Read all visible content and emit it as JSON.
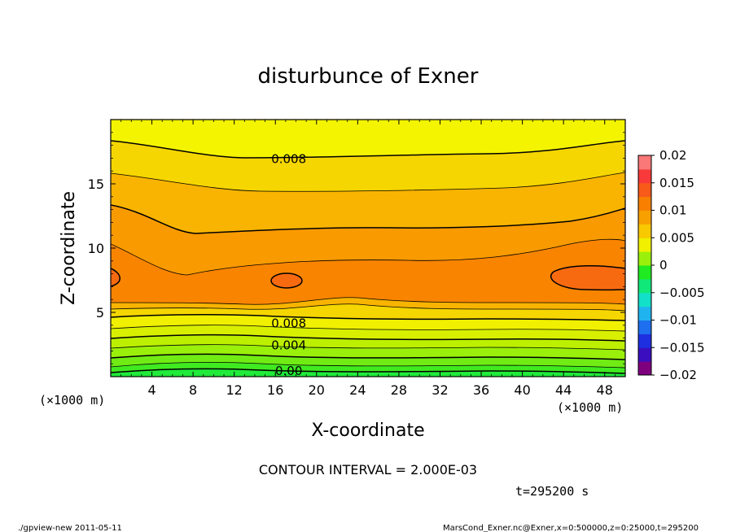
{
  "chart_data": {
    "type": "heatmap",
    "subtype": "filled-contour",
    "title": "disturbunce of Exner",
    "xlabel": "X-coordinate",
    "ylabel": "Z-coordinate",
    "x_unit_left": "(×1000 m)",
    "x_unit_right": "(×1000 m)",
    "xlim": [
      0,
      50
    ],
    "ylim": [
      0,
      20
    ],
    "x_ticks": [
      "4",
      "8",
      "12",
      "16",
      "20",
      "24",
      "28",
      "32",
      "36",
      "40",
      "44",
      "48"
    ],
    "x_tick_values": [
      4,
      8,
      12,
      16,
      20,
      24,
      28,
      32,
      36,
      40,
      44,
      48
    ],
    "y_ticks": [
      "5",
      "10",
      "15"
    ],
    "y_tick_values": [
      5,
      10,
      15
    ],
    "contour_labels": [
      {
        "text": "0.008",
        "x": 17.3,
        "z": 17.0
      },
      {
        "text": "0.008",
        "x": 17.3,
        "z": 4.2
      },
      {
        "text": "0.004",
        "x": 17.3,
        "z": 2.5
      },
      {
        "text": "0.00",
        "x": 17.3,
        "z": 0.5
      }
    ],
    "field_description": "Exner disturbance increases with height from ~0 near z=0 to a maximum ~0.012 around z=7-8, then decreases to ~0.005 at z=20",
    "colorbar": {
      "ticks": [
        "0.02",
        "0.015",
        "0.01",
        "0.005",
        "0",
        "−0.005",
        "−0.01",
        "−0.015",
        "−0.02"
      ],
      "range": [
        -0.02,
        0.02
      ],
      "colors": [
        "#7f007f",
        "#3b0fbf",
        "#1e2fe0",
        "#1e6fef",
        "#1fb4f0",
        "#13e0c8",
        "#10e87a",
        "#20ea20",
        "#9af00a",
        "#f0f000",
        "#f8c800",
        "#f8a000",
        "#f88000",
        "#f85a1a",
        "#f83a3a",
        "#fa7878"
      ]
    },
    "contour_interval": "CONTOUR INTERVAL = 2.000E-03",
    "time_label": "t=295200 s"
  },
  "footer": {
    "left": "./gpview-new  2011-05-11",
    "right": "MarsCond_Exner.nc@Exner,x=0:500000,z=0:25000,t=295200"
  }
}
